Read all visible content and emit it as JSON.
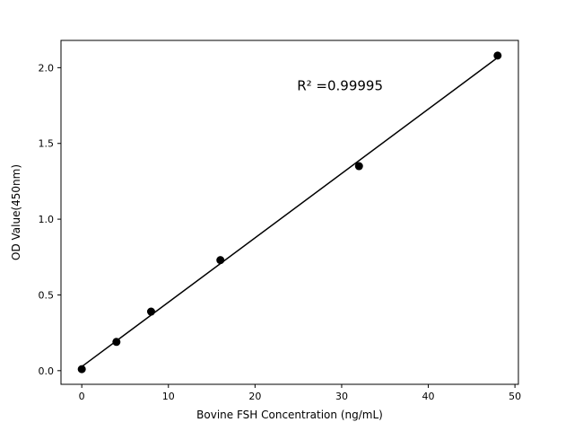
{
  "chart_data": {
    "type": "scatter",
    "title": "",
    "xlabel": "Bovine FSH Concentration (ng/mL)",
    "ylabel": "OD Value(450nm)",
    "x": [
      0,
      4,
      8,
      16,
      32,
      48
    ],
    "y": [
      0.01,
      0.19,
      0.39,
      0.73,
      1.35,
      2.08
    ],
    "fit": "linear",
    "annotation": "R² =0.99995",
    "annotation_pos": {
      "x_frac": 0.61,
      "y_frac": 0.145
    },
    "x_ticks": [
      0,
      10,
      20,
      30,
      40,
      50
    ],
    "y_ticks": [
      0.0,
      0.5,
      1.0,
      1.5,
      2.0
    ],
    "xlim": [
      -2.4,
      50.4
    ],
    "ylim": [
      -0.09,
      2.18
    ],
    "grid": false,
    "legend": "none",
    "marker_color": "#000000",
    "line_color": "#000000",
    "background_color": "#ffffff",
    "marker_radius": 4.5,
    "line_width": 1.5
  }
}
